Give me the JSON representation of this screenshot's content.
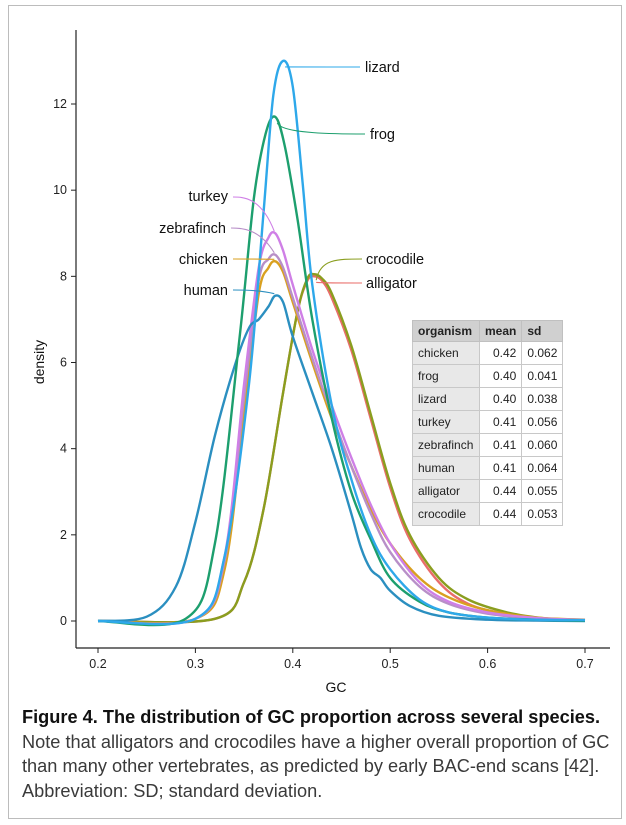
{
  "figure": {
    "title": "Figure 4. The distribution of GC proportion across several species.",
    "caption": "Note that alligators and crocodiles have a higher overall proportion of GC than many other vertebrates, as predicted by early BAC-end scans [42]. Abbreviation: SD; standard deviation."
  },
  "chart_data": {
    "type": "line",
    "xlabel": "GC",
    "ylabel": "density",
    "xlim": [
      0.2,
      0.7
    ],
    "ylim": [
      0,
      13
    ],
    "x_ticks": [
      "0.2",
      "0.3",
      "0.4",
      "0.5",
      "0.6",
      "0.7"
    ],
    "y_ticks": [
      "0",
      "2",
      "4",
      "6",
      "8",
      "10",
      "12"
    ],
    "grid": false,
    "series": [
      {
        "name": "lizard",
        "color": "#2ea8ea",
        "peak_x": 0.39,
        "peak_y": 13.0,
        "x": [
          0.2,
          0.3,
          0.33,
          0.355,
          0.37,
          0.38,
          0.39,
          0.4,
          0.41,
          0.42,
          0.44,
          0.46,
          0.48,
          0.5,
          0.53,
          0.56,
          0.6,
          0.65,
          0.7
        ],
        "y": [
          0,
          0.05,
          1.5,
          5.5,
          9.5,
          12.2,
          13.0,
          12.4,
          10.2,
          7.8,
          5.0,
          3.3,
          2.0,
          1.2,
          0.5,
          0.2,
          0.08,
          0.03,
          0.02
        ]
      },
      {
        "name": "frog",
        "color": "#1d9f6e",
        "peak_x": 0.382,
        "peak_y": 11.7,
        "x": [
          0.2,
          0.29,
          0.32,
          0.345,
          0.36,
          0.372,
          0.382,
          0.392,
          0.405,
          0.42,
          0.44,
          0.46,
          0.48,
          0.5,
          0.53,
          0.56,
          0.6,
          0.65,
          0.7
        ],
        "y": [
          0,
          0.05,
          1.8,
          6.5,
          9.8,
          11.3,
          11.7,
          11.0,
          9.3,
          7.0,
          4.7,
          3.0,
          1.9,
          1.0,
          0.45,
          0.2,
          0.08,
          0.03,
          0.01
        ]
      },
      {
        "name": "turkey",
        "color": "#cf7fe6",
        "peak_x": 0.382,
        "peak_y": 9.0,
        "x": [
          0.2,
          0.3,
          0.33,
          0.35,
          0.365,
          0.375,
          0.382,
          0.39,
          0.4,
          0.42,
          0.44,
          0.46,
          0.48,
          0.5,
          0.53,
          0.56,
          0.6,
          0.65,
          0.7
        ],
        "y": [
          0,
          0.05,
          1.5,
          5.5,
          8.2,
          8.9,
          9.0,
          8.6,
          7.8,
          6.3,
          5.0,
          3.8,
          2.7,
          1.8,
          0.9,
          0.45,
          0.2,
          0.07,
          0.02
        ]
      },
      {
        "name": "zebrafinch",
        "color": "#b88fc8",
        "peak_x": 0.382,
        "peak_y": 8.5,
        "x": [
          0.2,
          0.3,
          0.33,
          0.35,
          0.365,
          0.375,
          0.382,
          0.39,
          0.4,
          0.42,
          0.44,
          0.46,
          0.48,
          0.5,
          0.53,
          0.56,
          0.6,
          0.65,
          0.7
        ],
        "y": [
          0,
          0.05,
          1.4,
          5.2,
          7.9,
          8.4,
          8.5,
          8.2,
          7.5,
          6.1,
          4.8,
          3.6,
          2.5,
          1.6,
          0.8,
          0.4,
          0.17,
          0.06,
          0.02
        ]
      },
      {
        "name": "chicken",
        "color": "#d9a020",
        "peak_x": 0.382,
        "peak_y": 8.35,
        "x": [
          0.2,
          0.3,
          0.33,
          0.35,
          0.365,
          0.375,
          0.382,
          0.39,
          0.4,
          0.42,
          0.44,
          0.46,
          0.48,
          0.5,
          0.53,
          0.56,
          0.6,
          0.65,
          0.7
        ],
        "y": [
          0,
          0.05,
          1.2,
          4.8,
          7.6,
          8.2,
          8.35,
          8.1,
          7.4,
          6.0,
          4.7,
          3.6,
          2.6,
          1.8,
          1.0,
          0.55,
          0.25,
          0.08,
          0.03
        ]
      },
      {
        "name": "human",
        "color": "#2b8fc0",
        "peak_x": 0.382,
        "peak_y": 7.55,
        "x": [
          0.2,
          0.25,
          0.28,
          0.3,
          0.32,
          0.34,
          0.355,
          0.365,
          0.375,
          0.382,
          0.39,
          0.4,
          0.42,
          0.44,
          0.46,
          0.47,
          0.48,
          0.49,
          0.5,
          0.52,
          0.55,
          0.6,
          0.65,
          0.7
        ],
        "y": [
          0,
          0.1,
          0.8,
          2.3,
          4.3,
          5.9,
          6.8,
          7.0,
          7.3,
          7.55,
          7.4,
          6.6,
          5.3,
          4.0,
          2.5,
          1.7,
          1.2,
          1.0,
          0.7,
          0.35,
          0.12,
          0.03,
          0.01,
          0
        ]
      },
      {
        "name": "alligator",
        "color": "#e96d6a",
        "peak_x": 0.422,
        "peak_y": 8.0,
        "x": [
          0.2,
          0.32,
          0.35,
          0.37,
          0.39,
          0.405,
          0.415,
          0.422,
          0.43,
          0.44,
          0.46,
          0.48,
          0.5,
          0.52,
          0.55,
          0.58,
          0.62,
          0.66,
          0.7
        ],
        "y": [
          0,
          0.05,
          0.9,
          2.6,
          5.3,
          7.2,
          7.9,
          8.0,
          7.9,
          7.5,
          6.3,
          4.7,
          3.1,
          1.9,
          0.9,
          0.4,
          0.15,
          0.05,
          0.02
        ]
      },
      {
        "name": "crocodile",
        "color": "#8a9e1f",
        "peak_x": 0.422,
        "peak_y": 8.05,
        "x": [
          0.2,
          0.32,
          0.35,
          0.37,
          0.39,
          0.405,
          0.415,
          0.422,
          0.43,
          0.44,
          0.46,
          0.48,
          0.5,
          0.52,
          0.55,
          0.58,
          0.62,
          0.66,
          0.7
        ],
        "y": [
          0,
          0.05,
          0.9,
          2.6,
          5.3,
          7.2,
          7.95,
          8.05,
          7.95,
          7.6,
          6.4,
          4.8,
          3.2,
          2.0,
          1.0,
          0.5,
          0.2,
          0.06,
          0.02
        ]
      }
    ],
    "labels": [
      {
        "text": "lizard",
        "series": "lizard"
      },
      {
        "text": "frog",
        "series": "frog"
      },
      {
        "text": "turkey",
        "series": "turkey"
      },
      {
        "text": "zebrafinch",
        "series": "zebrafinch"
      },
      {
        "text": "chicken",
        "series": "chicken"
      },
      {
        "text": "human",
        "series": "human"
      },
      {
        "text": "crocodile",
        "series": "crocodile"
      },
      {
        "text": "alligator",
        "series": "alligator"
      }
    ],
    "table": {
      "columns": [
        "organism",
        "mean",
        "sd"
      ],
      "rows": [
        [
          "chicken",
          "0.42",
          "0.062"
        ],
        [
          "frog",
          "0.40",
          "0.041"
        ],
        [
          "lizard",
          "0.40",
          "0.038"
        ],
        [
          "turkey",
          "0.41",
          "0.056"
        ],
        [
          "zebrafinch",
          "0.41",
          "0.060"
        ],
        [
          "human",
          "0.41",
          "0.064"
        ],
        [
          "alligator",
          "0.44",
          "0.055"
        ],
        [
          "crocodile",
          "0.44",
          "0.053"
        ]
      ]
    }
  }
}
